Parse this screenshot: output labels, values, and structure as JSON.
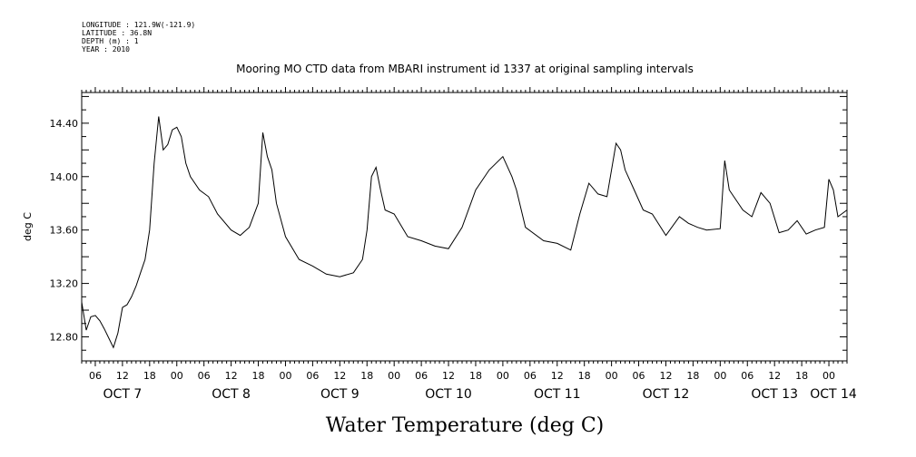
{
  "header": {
    "longitude": "LONGITUDE : 121.9W(-121.9)",
    "latitude": "LATITUDE : 36.8N",
    "depth": "DEPTH (m) : 1",
    "year": "YEAR : 2010"
  },
  "chart_data": {
    "type": "line",
    "title": "Mooring MO CTD data from MBARI instrument id 1337 at original sampling intervals",
    "xlabel": "Water Temperature (deg C)",
    "ylabel": "deg C",
    "ylim": [
      12.62,
      14.63
    ],
    "xlim": [
      "2010-10-07 03:00",
      "2010-10-14 04:00"
    ],
    "yticks": [
      12.8,
      13.2,
      13.6,
      14.0,
      14.4
    ],
    "ytick_labels": [
      "12.80",
      "13.20",
      "13.60",
      "14.00",
      "14.40"
    ],
    "hour_tick_labels": [
      "06",
      "12",
      "18",
      "00",
      "06",
      "12",
      "18",
      "00",
      "06",
      "12",
      "18",
      "00",
      "06",
      "12",
      "18",
      "00",
      "06",
      "12",
      "18",
      "00",
      "06",
      "12",
      "18",
      "00",
      "06",
      "12",
      "18",
      "00"
    ],
    "day_labels": [
      "OCT  7",
      "OCT  8",
      "OCT  9",
      "OCT 10",
      "OCT 11",
      "OCT 12",
      "OCT 13",
      "OCT 14"
    ],
    "grid": false,
    "series": [
      {
        "x": [
          "10-07 03:00",
          "10-07 04:00",
          "10-07 05:00",
          "10-07 06:00",
          "10-07 07:00",
          "10-07 08:00",
          "10-07 09:00",
          "10-07 10:00",
          "10-07 11:00",
          "10-07 12:00",
          "10-07 13:00",
          "10-07 14:00",
          "10-07 15:00",
          "10-07 16:00",
          "10-07 17:00",
          "10-07 18:00",
          "10-07 19:00",
          "10-07 20:00",
          "10-07 21:00",
          "10-07 22:00",
          "10-07 23:00",
          "10-08 00:00",
          "10-08 01:00",
          "10-08 02:00",
          "10-08 03:00",
          "10-08 05:00",
          "10-08 07:00",
          "10-08 09:00",
          "10-08 12:00",
          "10-08 14:00",
          "10-08 16:00",
          "10-08 18:00",
          "10-08 19:00",
          "10-08 20:00",
          "10-08 21:00",
          "10-08 22:00",
          "10-09 00:00",
          "10-09 03:00",
          "10-09 06:00",
          "10-09 09:00",
          "10-09 12:00",
          "10-09 15:00",
          "10-09 17:00",
          "10-09 18:00",
          "10-09 19:00",
          "10-09 20:00",
          "10-09 21:00",
          "10-09 22:00",
          "10-10 00:00",
          "10-10 03:00",
          "10-10 06:00",
          "10-10 09:00",
          "10-10 12:00",
          "10-10 15:00",
          "10-10 18:00",
          "10-10 21:00",
          "10-11 00:00",
          "10-11 02:00",
          "10-11 03:00",
          "10-11 05:00",
          "10-11 09:00",
          "10-11 12:00",
          "10-11 15:00",
          "10-11 17:00",
          "10-11 19:00",
          "10-11 21:00",
          "10-11 23:00",
          "10-12 01:00",
          "10-12 02:00",
          "10-12 03:00",
          "10-12 05:00",
          "10-12 07:00",
          "10-12 09:00",
          "10-12 12:00",
          "10-12 15:00",
          "10-12 17:00",
          "10-12 19:00",
          "10-12 21:00",
          "10-13 00:00",
          "10-13 01:00",
          "10-13 02:00",
          "10-13 03:00",
          "10-13 05:00",
          "10-13 07:00",
          "10-13 09:00",
          "10-13 11:00",
          "10-13 13:00",
          "10-13 15:00",
          "10-13 17:00",
          "10-13 19:00",
          "10-13 21:00",
          "10-13 23:00",
          "10-14 00:00",
          "10-14 01:00",
          "10-14 02:00",
          "10-14 04:00"
        ],
        "y": [
          13.06,
          12.85,
          12.95,
          12.96,
          12.92,
          12.86,
          12.79,
          12.72,
          12.83,
          13.02,
          13.04,
          13.1,
          13.18,
          13.28,
          13.38,
          13.6,
          14.1,
          14.45,
          14.2,
          14.24,
          14.35,
          14.37,
          14.3,
          14.1,
          14.0,
          13.9,
          13.85,
          13.72,
          13.6,
          13.56,
          13.62,
          13.8,
          14.33,
          14.15,
          14.05,
          13.8,
          13.55,
          13.38,
          13.33,
          13.27,
          13.25,
          13.28,
          13.38,
          13.6,
          14.0,
          14.07,
          13.9,
          13.75,
          13.72,
          13.55,
          13.52,
          13.48,
          13.46,
          13.62,
          13.9,
          14.05,
          14.15,
          14.0,
          13.9,
          13.62,
          13.52,
          13.5,
          13.45,
          13.72,
          13.95,
          13.87,
          13.85,
          14.25,
          14.2,
          14.05,
          13.9,
          13.75,
          13.72,
          13.56,
          13.7,
          13.65,
          13.62,
          13.6,
          13.61,
          14.12,
          13.9,
          13.85,
          13.75,
          13.7,
          13.88,
          13.8,
          13.58,
          13.6,
          13.67,
          13.57,
          13.6,
          13.62,
          13.98,
          13.9,
          13.7,
          13.75
        ]
      }
    ]
  }
}
